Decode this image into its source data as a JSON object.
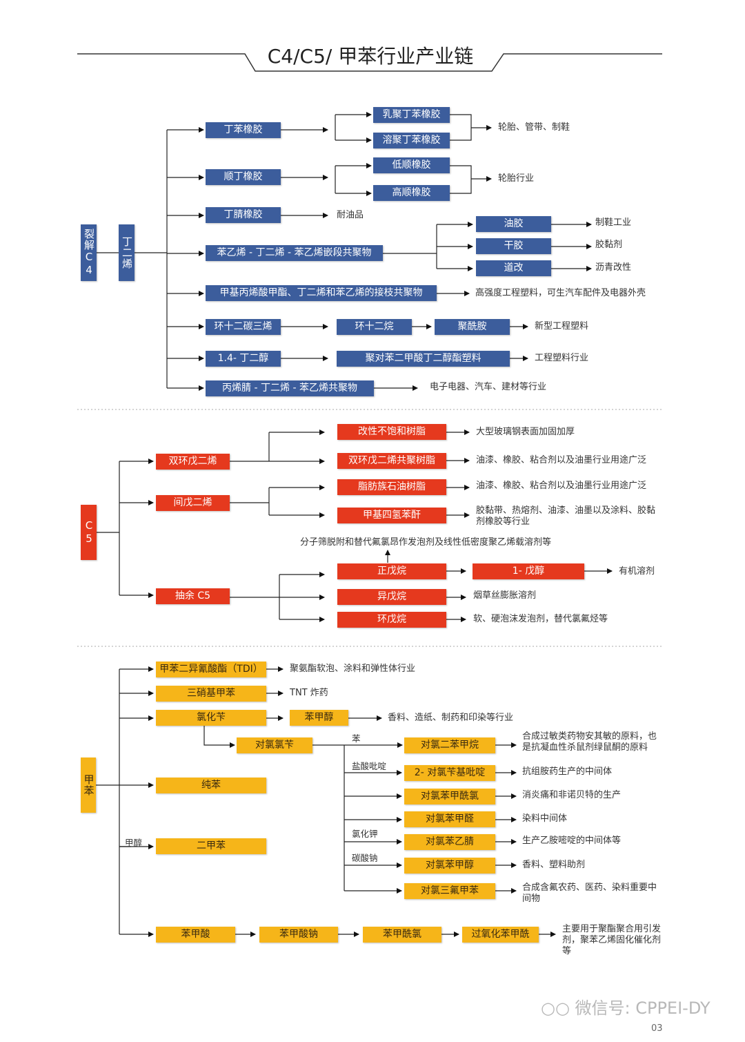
{
  "title": "C4/C5/ 甲苯行业产业链",
  "colors": {
    "c4": "#3c5d9c",
    "c5": "#e5391e",
    "toluene": "#f6b519"
  },
  "c4": {
    "boxes": [
      "裂解C4",
      "丁二烯",
      "丁苯橡胶",
      "乳聚丁苯橡胶",
      "溶聚丁苯橡胶",
      "顺丁橡胶",
      "低顺橡胶",
      "高顺橡胶",
      "丁腈橡胶",
      "苯乙烯 - 丁二烯 - 苯乙烯嵌段共聚物",
      "油胶",
      "干胶",
      "道改",
      "甲基丙烯酸甲酯、丁二烯和苯乙烯的接枝共聚物",
      "环十二碳三烯",
      "环十二烷",
      "聚酰胺",
      "1.4- 丁二醇",
      "聚对苯二甲酸丁二醇酯塑料",
      "丙烯腈 - 丁二烯 - 苯乙烯共聚物"
    ],
    "uses": [
      "轮胎、管带、制鞋",
      "轮胎行业",
      "耐油品",
      "制鞋工业",
      "胶黏剂",
      "沥青改性",
      "高强度工程塑料，可生汽车配件及电器外壳",
      "新型工程塑料",
      "工程塑料行业",
      "电子电器、汽车、建材等行业"
    ]
  },
  "c5": {
    "boxes": [
      "C5",
      "双环戊二烯",
      "改性不饱和树脂",
      "双环戊二烯共聚树脂",
      "间戊二烯",
      "脂肪族石油树脂",
      "甲基四氢苯酐",
      "抽余 C5",
      "正戊烷",
      "1- 戊醇",
      "异戊烷",
      "环戊烷"
    ],
    "uses": [
      "大型玻璃钢表面加固加厚",
      "油漆、橡胶、粘合剂以及油墨行业用途广泛",
      "油漆、橡胶、粘合剂以及油墨行业用途广泛",
      "胶黏带、热熔剂、油漆、油墨以及涂料、胶黏剂橡胶等行业",
      "分子筛脱附和替代氟氯昂作发泡剂及线性低密度聚乙烯载溶剂等",
      "有机溶剂",
      "烟草丝膨胀溶剂",
      "软、硬泡沫发泡剂，替代氯氟烃等"
    ]
  },
  "toluene": {
    "boxes": [
      "甲苯",
      "甲苯二异氰酸酯（TDI）",
      "三硝基甲苯",
      "氯化苄",
      "苯甲醇",
      "对氯氯苄",
      "对氯二苯甲烷",
      "2- 对氯苄基吡啶",
      "对氯苯甲酰氯",
      "对氯苯甲醛",
      "对氯苯乙腈",
      "对氯苯甲醇",
      "对氯三氟甲苯",
      "纯苯",
      "二甲苯",
      "苯甲酸",
      "苯甲酸钠",
      "苯甲酰氯",
      "过氧化苯甲酰"
    ],
    "reagents": [
      "苯",
      "盐酸吡啶",
      "氯化钾",
      "碳酸钠",
      "甲醇"
    ],
    "uses": [
      "聚氨酯软泡、涂料和弹性体行业",
      "TNT 炸药",
      "香料、造纸、制药和印染等行业",
      "合成过敏类药物安其敏的原料，也是抗凝血性杀鼠剂绿鼠酮的原料",
      "抗组胺药生产的中间体",
      "消炎痛和非诺贝特的生产",
      "染料中间体",
      "生产乙胺嘧啶的中间体等",
      "香料、塑料助剂",
      "合成含氟农药、医药、染料重要中间物",
      "主要用于聚酯聚合用引发剂，聚苯乙烯固化催化剂等"
    ]
  },
  "watermark": "微信号: CPPEI-DY",
  "page_number": "03"
}
